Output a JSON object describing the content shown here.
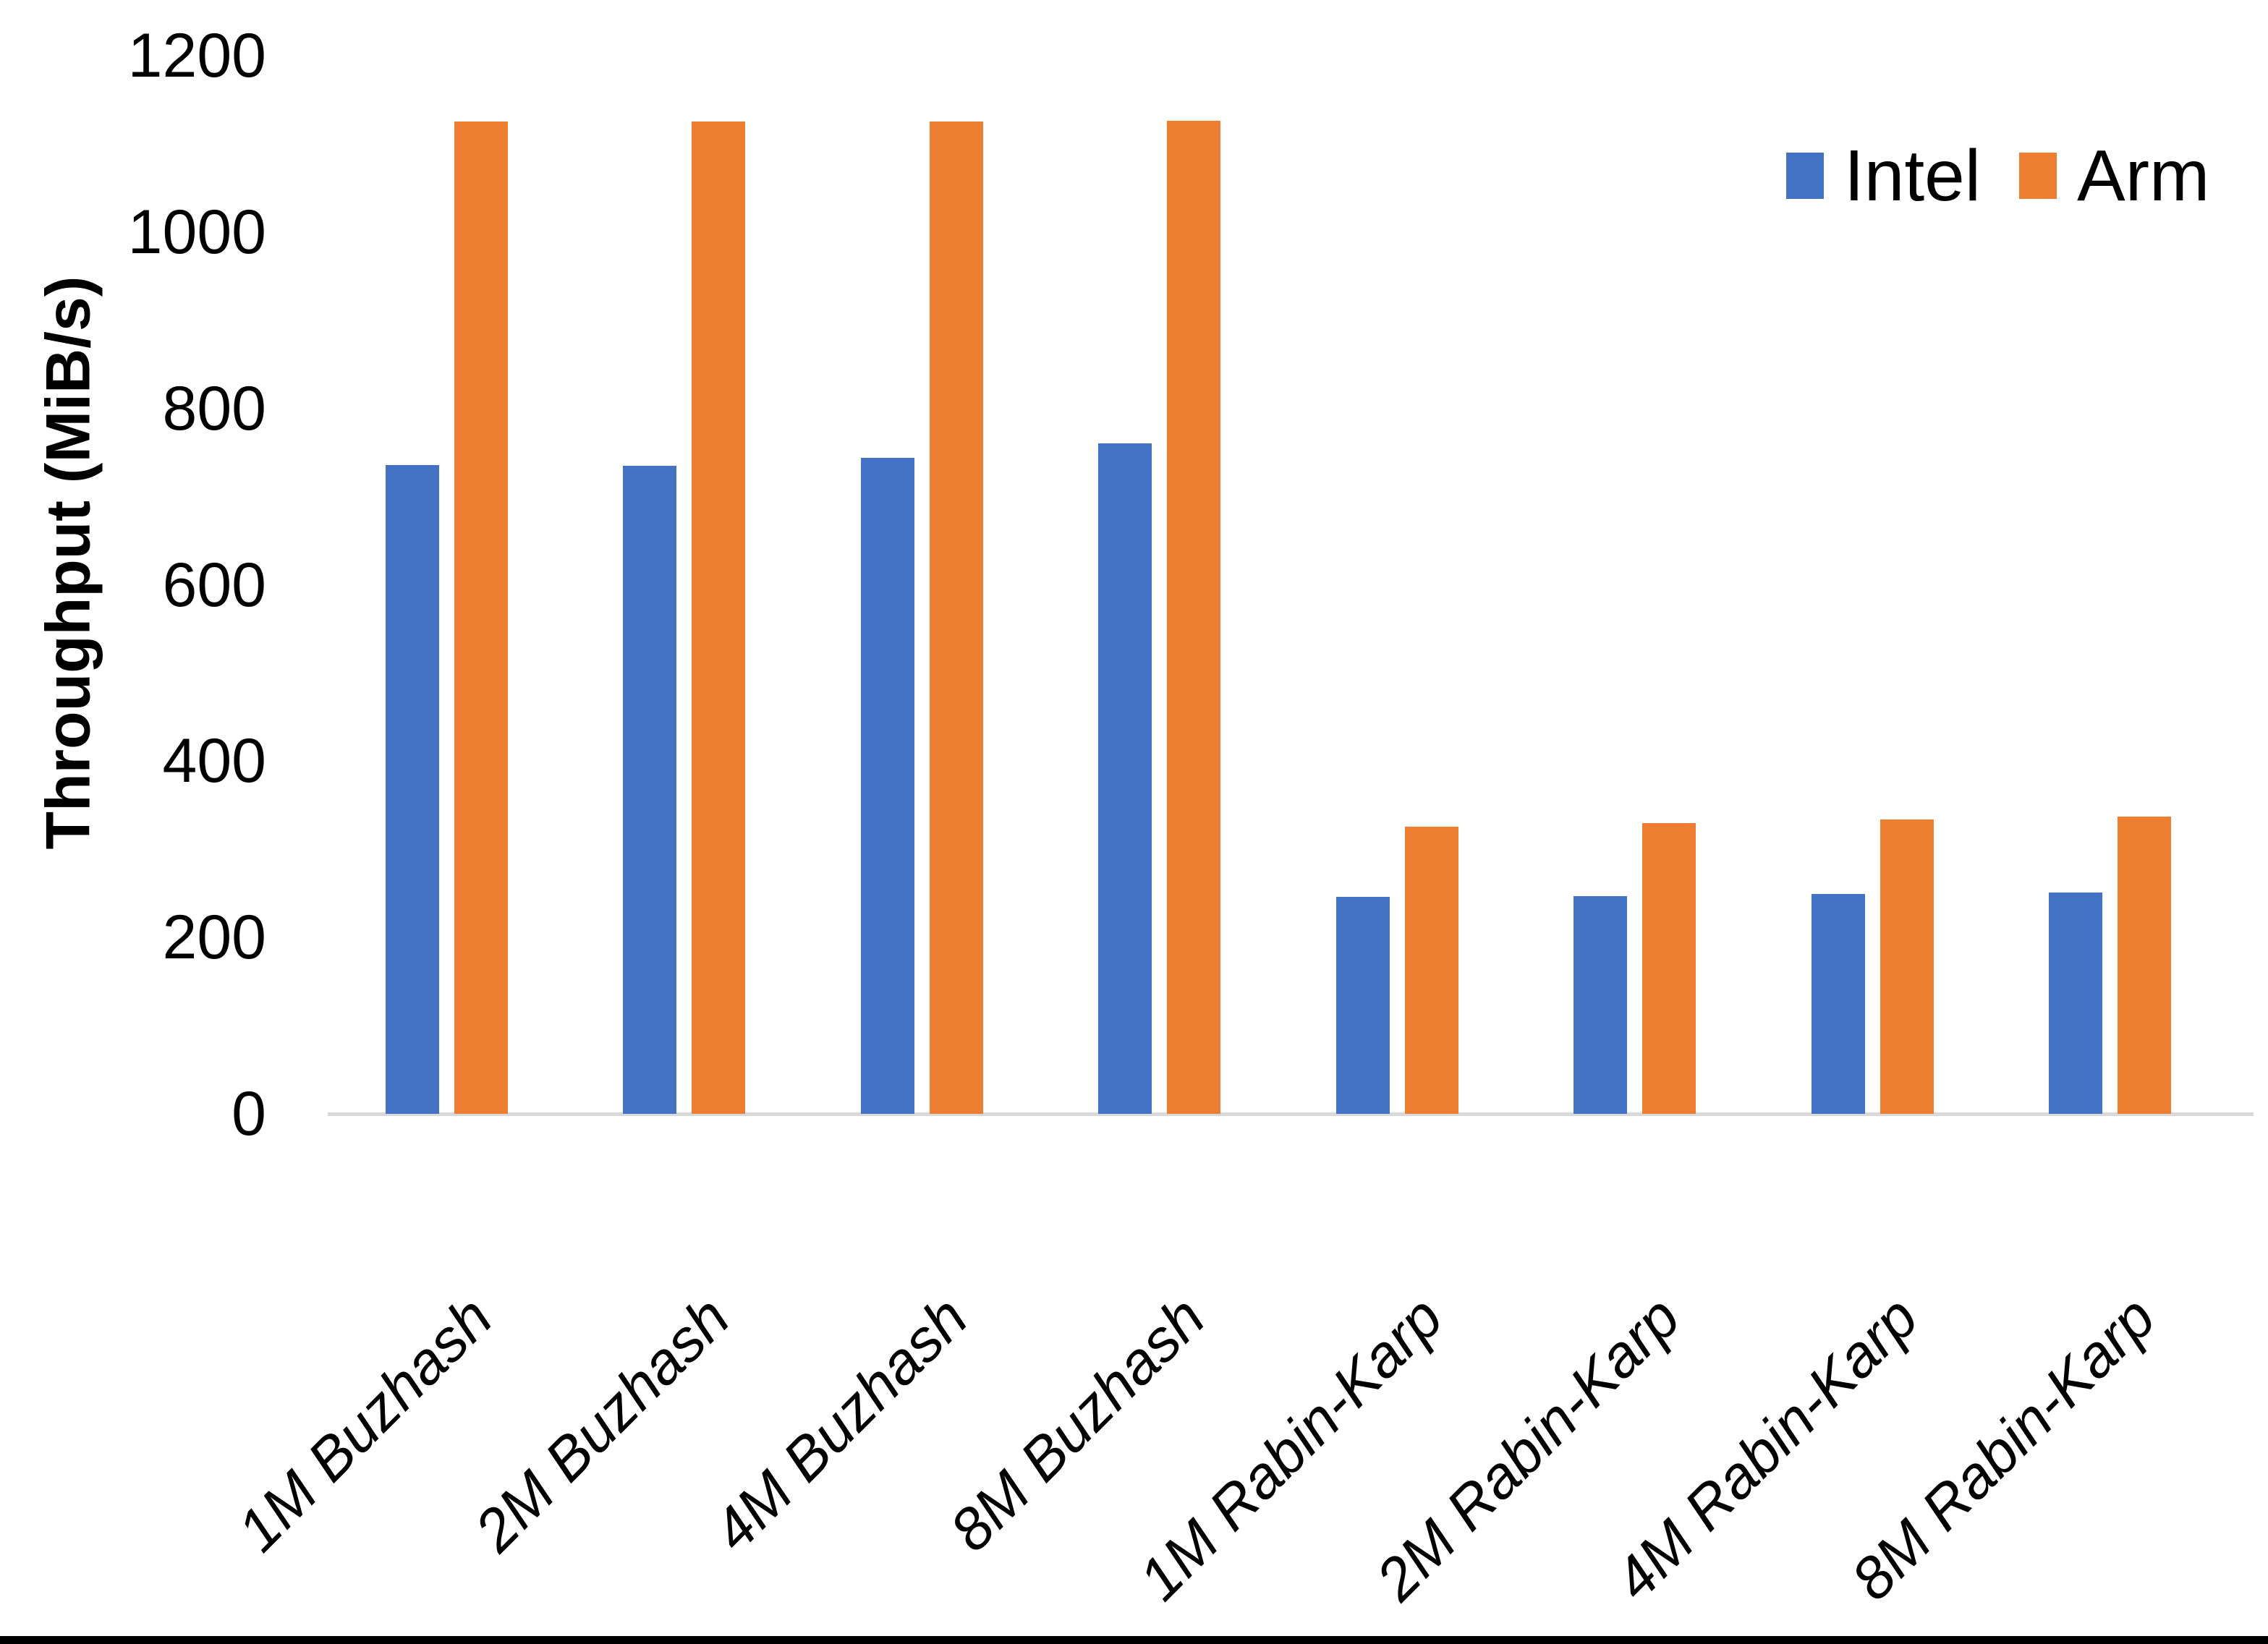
{
  "chart_data": {
    "type": "bar",
    "title": "",
    "xlabel": "",
    "ylabel": "Throughput (MiB/s)",
    "ylim": [
      0,
      1200
    ],
    "yticks": [
      0,
      200,
      400,
      600,
      800,
      1000,
      1200
    ],
    "grid": false,
    "legend_position": "top-right",
    "categories": [
      "1M Buzhash",
      "2M Buzhash",
      "4M Buzhash",
      "8M Buzhash",
      "1M Rabin-Karp",
      "2M Rabin-Karp",
      "4M Rabin-Karp",
      "8M Rabin-Karp"
    ],
    "series": [
      {
        "name": "Intel",
        "color": "#4472C4",
        "values": [
          736,
          735,
          744,
          760,
          246,
          247,
          249,
          251
        ]
      },
      {
        "name": "Arm",
        "color": "#ED7D31",
        "values": [
          1125,
          1125,
          1125,
          1126,
          326,
          330,
          334,
          337
        ]
      }
    ],
    "colors": {
      "axis_line": "#d9d9d9",
      "text": "#000000"
    }
  }
}
